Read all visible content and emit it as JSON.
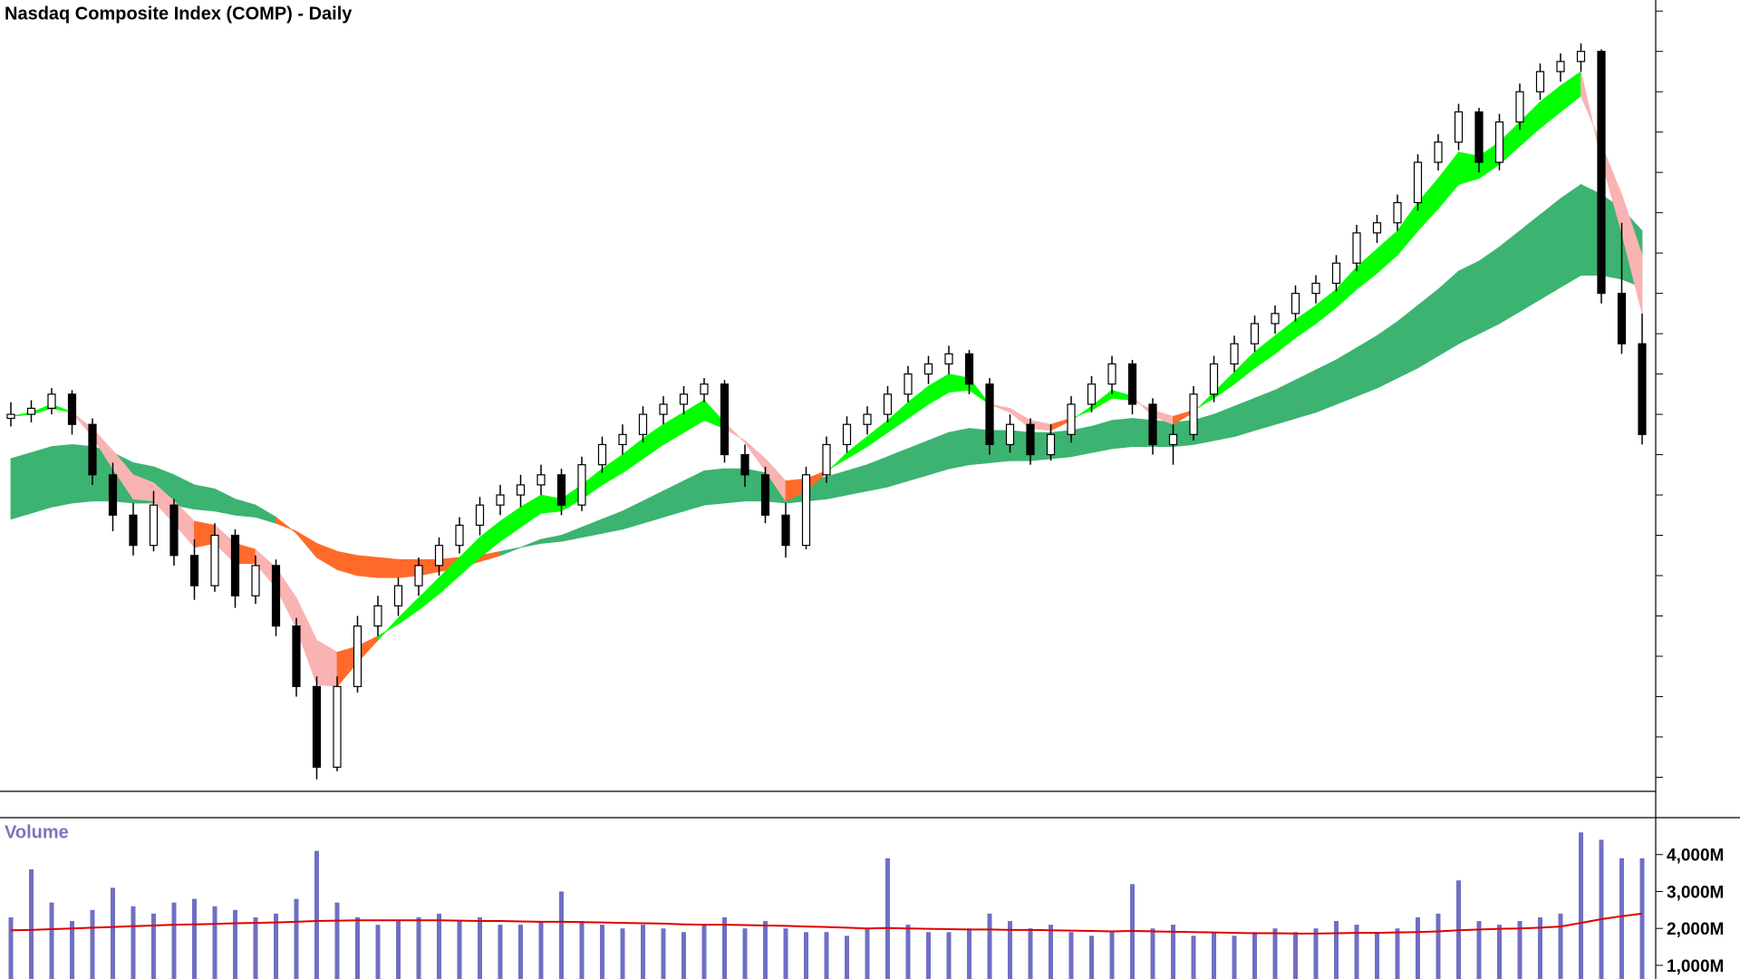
{
  "chart_data": [
    {
      "type": "candlestick",
      "title": "Nasdaq Composite Index (COMP) - Daily",
      "open": [
        7980,
        8000,
        8030,
        8100,
        7950,
        7700,
        7500,
        7350,
        7550,
        7300,
        7150,
        7400,
        7100,
        7250,
        6950,
        6650,
        6250,
        6650,
        6950,
        7050,
        7150,
        7250,
        7350,
        7450,
        7550,
        7600,
        7650,
        7700,
        7550,
        7750,
        7850,
        7900,
        8000,
        8050,
        8100,
        8150,
        7800,
        7700,
        7500,
        7350,
        7700,
        7850,
        7950,
        8000,
        8100,
        8200,
        8250,
        8300,
        8150,
        7850,
        7950,
        7800,
        7900,
        8050,
        8150,
        8250,
        8050,
        7850,
        7900,
        8100,
        8250,
        8350,
        8450,
        8500,
        8600,
        8650,
        8750,
        8900,
        8950,
        9050,
        9250,
        9350,
        9500,
        9250,
        9450,
        9600,
        9700,
        9750,
        9800,
        8600,
        8350
      ],
      "high": [
        8060,
        8070,
        8130,
        8120,
        7980,
        7760,
        7560,
        7620,
        7580,
        7380,
        7460,
        7430,
        7300,
        7280,
        6990,
        6700,
        6700,
        7000,
        7100,
        7190,
        7290,
        7390,
        7490,
        7590,
        7650,
        7700,
        7750,
        7730,
        7790,
        7890,
        7950,
        8040,
        8090,
        8140,
        8180,
        8170,
        7850,
        7740,
        7560,
        7740,
        7890,
        7990,
        8040,
        8140,
        8240,
        8290,
        8340,
        8320,
        8180,
        8000,
        7980,
        7950,
        8090,
        8190,
        8290,
        8270,
        8080,
        7950,
        8140,
        8290,
        8390,
        8490,
        8540,
        8640,
        8690,
        8790,
        8940,
        8990,
        9090,
        9290,
        9390,
        9540,
        9520,
        9490,
        9640,
        9740,
        9790,
        9840,
        9810,
        8950,
        8500
      ],
      "low": [
        7940,
        7960,
        8000,
        7900,
        7650,
        7420,
        7300,
        7320,
        7250,
        7080,
        7120,
        7040,
        7060,
        6900,
        6600,
        6190,
        6230,
        6620,
        6900,
        7000,
        7100,
        7200,
        7310,
        7400,
        7500,
        7540,
        7600,
        7500,
        7520,
        7710,
        7800,
        7860,
        7950,
        8000,
        8060,
        7760,
        7640,
        7460,
        7290,
        7330,
        7660,
        7810,
        7900,
        7960,
        8060,
        8150,
        8200,
        8100,
        7800,
        7810,
        7750,
        7770,
        7860,
        8010,
        8100,
        8000,
        7800,
        7750,
        7870,
        8060,
        8210,
        8310,
        8400,
        8460,
        8550,
        8610,
        8710,
        8850,
        8910,
        9010,
        9210,
        9310,
        9200,
        9210,
        9410,
        9560,
        9650,
        9700,
        8550,
        8300,
        7850
      ],
      "close": [
        8000,
        8030,
        8100,
        7950,
        7700,
        7500,
        7350,
        7550,
        7300,
        7150,
        7400,
        7100,
        7250,
        6950,
        6650,
        6250,
        6650,
        6950,
        7050,
        7150,
        7250,
        7350,
        7450,
        7550,
        7600,
        7650,
        7700,
        7550,
        7750,
        7850,
        7900,
        8000,
        8050,
        8100,
        8150,
        7800,
        7700,
        7500,
        7350,
        7700,
        7850,
        7950,
        8000,
        8100,
        8200,
        8250,
        8300,
        8150,
        7850,
        7950,
        7800,
        7900,
        8050,
        8150,
        8250,
        8050,
        7850,
        7900,
        8100,
        8250,
        8350,
        8450,
        8500,
        8600,
        8650,
        8750,
        8900,
        8950,
        9050,
        9250,
        9350,
        9500,
        9250,
        9450,
        9600,
        9700,
        9750,
        9800,
        8600,
        8350,
        7900
      ],
      "short_ribbon": {
        "fast": [
          7990,
          8010,
          8050,
          8010,
          7890,
          7730,
          7580,
          7570,
          7460,
          7340,
          7360,
          7260,
          7260,
          7140,
          6940,
          6660,
          6650,
          6770,
          6880,
          6990,
          7090,
          7190,
          7290,
          7390,
          7470,
          7540,
          7600,
          7580,
          7650,
          7730,
          7800,
          7880,
          7950,
          8010,
          8070,
          7960,
          7860,
          7720,
          7570,
          7620,
          7710,
          7810,
          7890,
          7970,
          8060,
          8140,
          8200,
          8180,
          8050,
          8010,
          7930,
          7920,
          7970,
          8040,
          8120,
          8090,
          7990,
          7950,
          8010,
          8110,
          8210,
          8310,
          8390,
          8470,
          8540,
          8620,
          8730,
          8820,
          8910,
          9050,
          9170,
          9300,
          9280,
          9350,
          9450,
          9550,
          9630,
          9700,
          9260,
          8900,
          8500
        ],
        "slow": [
          7990,
          8000,
          8030,
          8010,
          7930,
          7820,
          7700,
          7660,
          7570,
          7470,
          7450,
          7360,
          7330,
          7240,
          7090,
          6880,
          6820,
          6850,
          6900,
          6960,
          7030,
          7110,
          7200,
          7290,
          7370,
          7440,
          7510,
          7520,
          7580,
          7650,
          7710,
          7780,
          7850,
          7910,
          7970,
          7930,
          7870,
          7780,
          7670,
          7680,
          7720,
          7780,
          7840,
          7910,
          7980,
          8050,
          8110,
          8120,
          8050,
          8030,
          7970,
          7950,
          7980,
          8020,
          8080,
          8070,
          8020,
          7990,
          8020,
          8080,
          8150,
          8230,
          8300,
          8380,
          8450,
          8530,
          8620,
          8700,
          8790,
          8910,
          9020,
          9140,
          9170,
          9240,
          9330,
          9420,
          9500,
          9580,
          9340,
          9090,
          8790
        ]
      },
      "long_ribbon": {
        "fast": [
          7780,
          7810,
          7840,
          7850,
          7840,
          7810,
          7760,
          7740,
          7700,
          7650,
          7630,
          7580,
          7550,
          7490,
          7410,
          7290,
          7230,
          7200,
          7190,
          7190,
          7200,
          7220,
          7240,
          7270,
          7300,
          7340,
          7380,
          7400,
          7440,
          7480,
          7520,
          7570,
          7620,
          7670,
          7720,
          7730,
          7730,
          7710,
          7670,
          7670,
          7690,
          7720,
          7750,
          7790,
          7830,
          7870,
          7910,
          7930,
          7920,
          7920,
          7910,
          7910,
          7920,
          7940,
          7970,
          7980,
          7970,
          7960,
          7970,
          8000,
          8040,
          8080,
          8120,
          8170,
          8220,
          8270,
          8330,
          8390,
          8460,
          8540,
          8620,
          8710,
          8760,
          8830,
          8910,
          8990,
          9070,
          9140,
          9090,
          9020,
          8910
        ],
        "slow": [
          7480,
          7510,
          7540,
          7560,
          7570,
          7570,
          7560,
          7560,
          7550,
          7530,
          7520,
          7500,
          7490,
          7460,
          7420,
          7360,
          7320,
          7300,
          7290,
          7280,
          7280,
          7280,
          7290,
          7300,
          7320,
          7340,
          7360,
          7370,
          7390,
          7410,
          7430,
          7460,
          7490,
          7520,
          7550,
          7560,
          7570,
          7570,
          7560,
          7570,
          7580,
          7600,
          7620,
          7640,
          7670,
          7700,
          7730,
          7750,
          7760,
          7770,
          7770,
          7780,
          7790,
          7810,
          7830,
          7840,
          7840,
          7840,
          7850,
          7870,
          7890,
          7920,
          7950,
          7980,
          8010,
          8050,
          8090,
          8130,
          8180,
          8230,
          8290,
          8350,
          8400,
          8450,
          8510,
          8570,
          8630,
          8690,
          8690,
          8670,
          8630
        ]
      },
      "up_color": "#ffffff",
      "down_color": "#000000",
      "ribbon_colors": {
        "short_up": "#00ff00",
        "short_down": "#f9b3b3",
        "short_turn": "#ff6a2a",
        "long_up": "#3cb371",
        "long_down": "#ff6a2a"
      },
      "ylim": [
        6130,
        10055
      ],
      "yticks": [
        6200,
        6400,
        6600,
        6800,
        7000,
        7200,
        7400,
        7600,
        7800,
        8000,
        8200,
        8400,
        8600,
        8800,
        9000,
        9200,
        9400,
        9600,
        9800,
        10000
      ]
    },
    {
      "type": "bar",
      "title": "Volume",
      "values": [
        2300,
        3600,
        2700,
        2200,
        2500,
        3100,
        2600,
        2400,
        2700,
        2800,
        2600,
        2500,
        2300,
        2400,
        2800,
        4100,
        2700,
        2300,
        2100,
        2200,
        2300,
        2400,
        2200,
        2300,
        2100,
        2100,
        2200,
        3000,
        2200,
        2100,
        2000,
        2100,
        2000,
        1900,
        2100,
        2300,
        2000,
        2200,
        2000,
        1900,
        1900,
        1800,
        2000,
        3900,
        2100,
        1900,
        1900,
        2000,
        2400,
        2200,
        2000,
        2100,
        1900,
        1800,
        1900,
        3200,
        2000,
        2100,
        1800,
        1900,
        1800,
        1900,
        2000,
        1900,
        2000,
        2200,
        2100,
        1900,
        2000,
        2300,
        2400,
        3300,
        2200,
        2100,
        2200,
        2300,
        2400,
        4600,
        4400,
        3900,
        3900
      ],
      "average": [
        1950,
        1960,
        1980,
        2000,
        2020,
        2040,
        2060,
        2080,
        2100,
        2110,
        2120,
        2140,
        2150,
        2160,
        2180,
        2200,
        2210,
        2220,
        2220,
        2220,
        2220,
        2220,
        2210,
        2200,
        2200,
        2190,
        2180,
        2180,
        2170,
        2160,
        2150,
        2140,
        2130,
        2110,
        2100,
        2100,
        2090,
        2080,
        2070,
        2050,
        2040,
        2020,
        2000,
        2010,
        2000,
        1990,
        1980,
        1970,
        1970,
        1960,
        1960,
        1950,
        1940,
        1930,
        1920,
        1930,
        1920,
        1910,
        1900,
        1890,
        1880,
        1870,
        1870,
        1860,
        1860,
        1870,
        1880,
        1880,
        1890,
        1900,
        1920,
        1950,
        1970,
        1990,
        2000,
        2020,
        2050,
        2150,
        2250,
        2330,
        2400
      ],
      "color": "#6f6fc4",
      "average_color": "#e00000",
      "title_color": "#7777bb",
      "ylim": [
        630,
        5000
      ],
      "yticks": [
        {
          "value": 4000,
          "label": "4,000M"
        },
        {
          "value": 3000,
          "label": "3,000M"
        },
        {
          "value": 2000,
          "label": "2,000M"
        },
        {
          "value": 1000,
          "label": "1,000M"
        }
      ]
    }
  ]
}
